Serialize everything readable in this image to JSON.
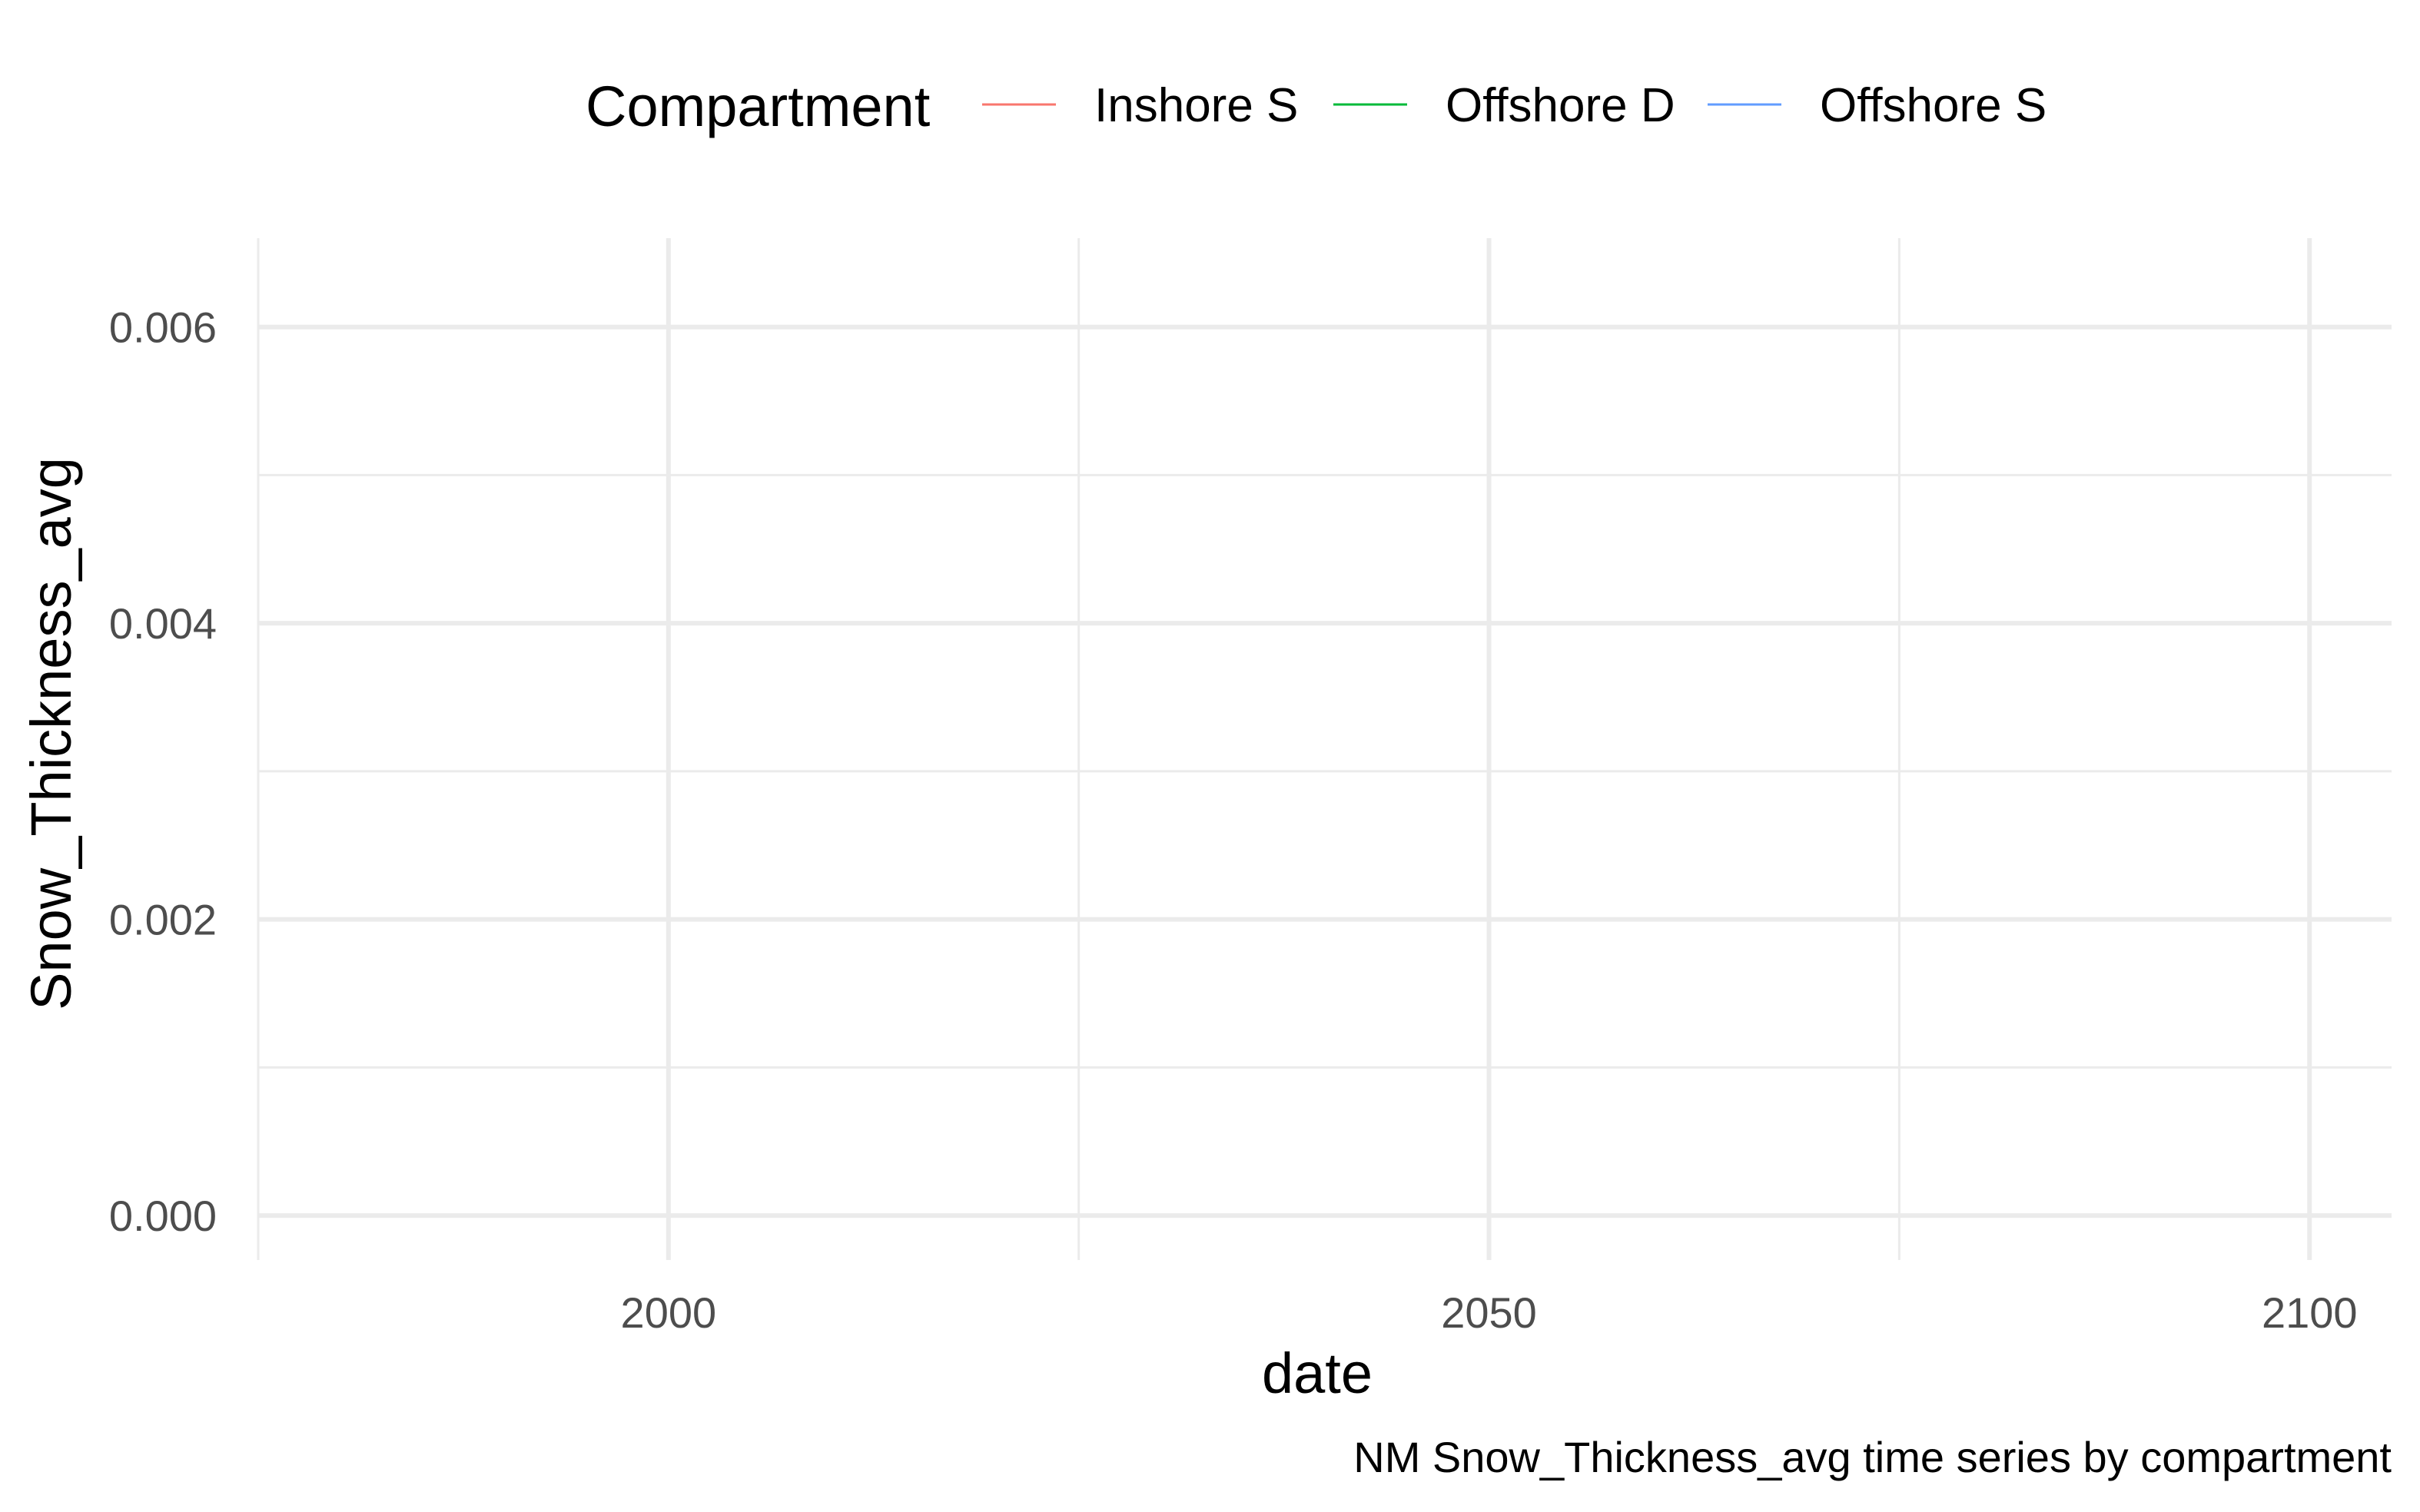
{
  "chart_data": {
    "type": "line",
    "title": "",
    "caption": "NM Snow_Thickness_avg time series by compartment",
    "xlabel": "date",
    "ylabel": "Snow_Thickness_avg",
    "xlim": [
      1975,
      2105
    ],
    "ylim": [
      -0.0003,
      0.0066
    ],
    "x_ticks": [
      2000,
      2050,
      2100
    ],
    "x_tick_labels": [
      "2000",
      "2050",
      "2100"
    ],
    "x_minor_ticks": [
      1975,
      2025,
      2075
    ],
    "y_ticks": [
      0.0,
      0.002,
      0.004,
      0.006
    ],
    "y_tick_labels": [
      "0.000",
      "0.002",
      "0.004",
      "0.006"
    ],
    "y_minor_ticks": [
      0.001,
      0.003,
      0.005
    ],
    "grid": true,
    "legend": {
      "title": "Compartment",
      "position": "top",
      "entries": [
        "Inshore S",
        "Offshore D",
        "Offshore S"
      ]
    },
    "series": [
      {
        "name": "Inshore S",
        "color": "#F8766D",
        "x": [],
        "y": []
      },
      {
        "name": "Offshore D",
        "color": "#00BA38",
        "x": [],
        "y": []
      },
      {
        "name": "Offshore S",
        "color": "#619CFF",
        "x": [],
        "y": []
      }
    ]
  }
}
